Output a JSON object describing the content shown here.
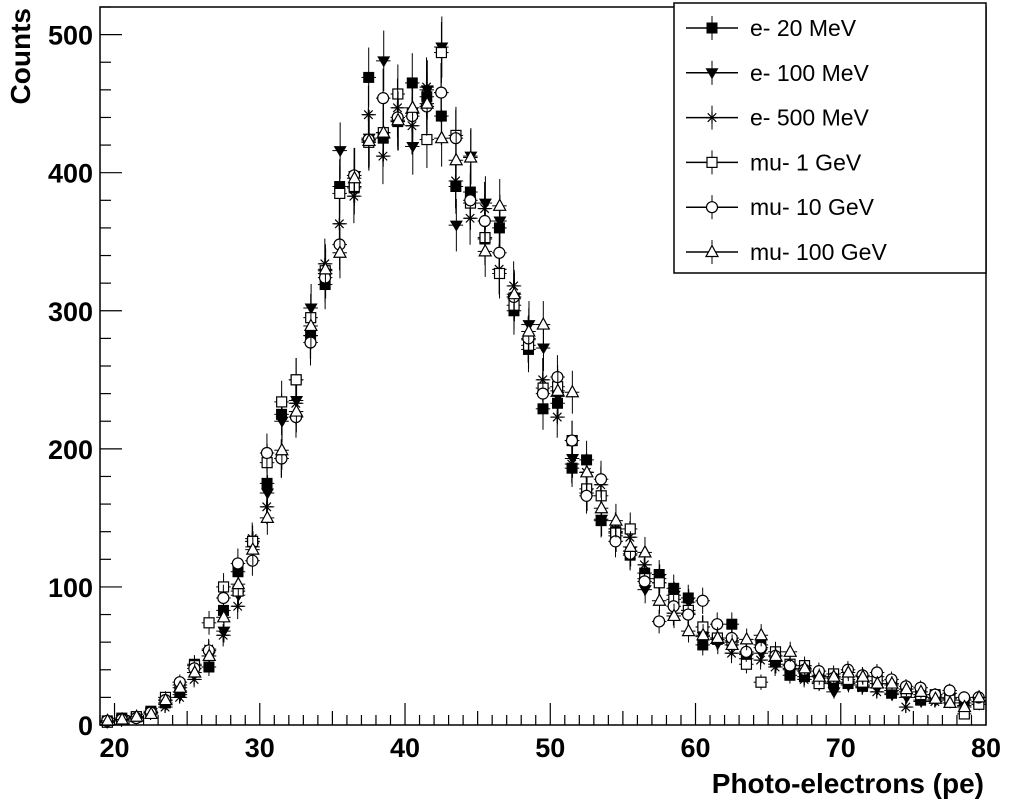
{
  "chart_data": {
    "type": "scatter",
    "title": "",
    "xlabel": "Photo-electrons (pe)",
    "ylabel": "Counts",
    "xlim": [
      19,
      80
    ],
    "ylim": [
      0,
      520
    ],
    "x_ticks": [
      20,
      30,
      40,
      50,
      60,
      70,
      80
    ],
    "x_tick_labels": [
      "20",
      "30",
      "40",
      "50",
      "60",
      "70",
      "80"
    ],
    "y_ticks": [
      0,
      100,
      200,
      300,
      400,
      500
    ],
    "y_tick_labels": [
      "0",
      "100",
      "200",
      "300",
      "400",
      "500"
    ],
    "legend_position": "top-right",
    "legend": [
      "e- 20 MeV",
      "e- 100 MeV",
      "e- 500 MeV",
      "mu- 1 GeV",
      "mu- 10 GeV",
      "mu- 100 GeV"
    ],
    "x": [
      19.5,
      20.5,
      21.5,
      22.5,
      23.5,
      24.5,
      25.5,
      26.5,
      27.5,
      28.5,
      29.5,
      30.5,
      31.5,
      32.5,
      33.5,
      34.5,
      35.5,
      36.5,
      37.5,
      38.5,
      39.5,
      40.5,
      41.5,
      42.5,
      43.5,
      44.5,
      45.5,
      46.5,
      47.5,
      48.5,
      49.5,
      50.5,
      51.5,
      52.5,
      53.5,
      54.5,
      55.5,
      56.5,
      57.5,
      58.5,
      59.5,
      60.5,
      61.5,
      62.5,
      63.5,
      64.5,
      65.5,
      66.5,
      67.5,
      68.5,
      69.5,
      70.5,
      71.5,
      72.5,
      73.5,
      74.5,
      75.5,
      76.5,
      77.5,
      78.5,
      79.5
    ],
    "series": [
      {
        "name": "e- 20 MeV",
        "marker": "filled-square",
        "values": [
          3,
          5,
          6,
          10,
          16,
          24,
          44,
          42,
          83,
          111,
          133,
          175,
          225,
          250,
          282,
          319,
          390,
          389,
          469,
          425,
          437,
          465,
          455,
          441,
          390,
          386,
          352,
          360,
          300,
          272,
          229,
          233,
          186,
          192,
          148,
          140,
          123,
          110,
          109,
          99,
          92,
          58,
          62,
          73,
          51,
          58,
          46,
          36,
          35,
          36,
          31,
          30,
          28,
          35,
          23,
          26,
          18,
          22,
          23,
          18,
          17
        ]
      },
      {
        "name": "e- 100 MeV",
        "marker": "filled-triangle-down",
        "values": [
          2,
          4,
          5,
          9,
          15,
          22,
          38,
          50,
          68,
          94,
          129,
          168,
          220,
          235,
          302,
          327,
          416,
          398,
          425,
          481,
          437,
          419,
          460,
          491,
          362,
          412,
          378,
          365,
          310,
          290,
          273,
          238,
          193,
          168,
          149,
          137,
          126,
          98,
          106,
          94,
          89,
          64,
          59,
          60,
          48,
          52,
          44,
          40,
          39,
          31,
          24,
          29,
          29,
          27,
          22,
          20,
          17,
          18,
          20,
          16,
          15
        ]
      },
      {
        "name": "e- 500 MeV",
        "marker": "star",
        "values": [
          2,
          3,
          5,
          8,
          13,
          20,
          33,
          55,
          65,
          86,
          135,
          158,
          193,
          233,
          282,
          334,
          363,
          383,
          442,
          412,
          447,
          434,
          462,
          458,
          394,
          367,
          374,
          330,
          318,
          279,
          250,
          223,
          189,
          183,
          174,
          142,
          136,
          116,
          103,
          81,
          81,
          71,
          63,
          52,
          52,
          47,
          42,
          41,
          33,
          35,
          30,
          31,
          27,
          24,
          25,
          13,
          20,
          17,
          19,
          14,
          17
        ]
      },
      {
        "name": "mu- 1 GeV",
        "marker": "open-square",
        "values": [
          2,
          4,
          6,
          9,
          20,
          29,
          43,
          74,
          100,
          97,
          133,
          190,
          234,
          250,
          295,
          329,
          385,
          390,
          422,
          429,
          457,
          443,
          424,
          487,
          427,
          378,
          353,
          327,
          304,
          275,
          244,
          245,
          206,
          171,
          166,
          139,
          142,
          106,
          103,
          91,
          83,
          71,
          63,
          61,
          44,
          31,
          53,
          44,
          43,
          30,
          37,
          33,
          31,
          32,
          29,
          24,
          22,
          20,
          18,
          8,
          15
        ]
      },
      {
        "name": "mu- 10 GeV",
        "marker": "open-circle",
        "values": [
          3,
          4,
          5,
          9,
          18,
          31,
          41,
          54,
          92,
          117,
          119,
          197,
          193,
          223,
          277,
          324,
          348,
          398,
          424,
          454,
          440,
          441,
          448,
          458,
          425,
          380,
          365,
          342,
          310,
          280,
          240,
          252,
          206,
          166,
          178,
          133,
          124,
          104,
          75,
          86,
          80,
          90,
          73,
          63,
          53,
          56,
          50,
          43,
          40,
          39,
          34,
          40,
          36,
          38,
          33,
          28,
          27,
          22,
          25,
          20,
          20
        ]
      },
      {
        "name": "mu- 100 GeV",
        "marker": "open-triangle-up",
        "values": [
          3,
          4,
          6,
          8,
          18,
          27,
          38,
          50,
          78,
          102,
          127,
          150,
          199,
          227,
          289,
          330,
          342,
          396,
          423,
          429,
          438,
          447,
          450,
          425,
          409,
          411,
          343,
          376,
          312,
          285,
          290,
          242,
          241,
          183,
          157,
          148,
          129,
          125,
          90,
          79,
          68,
          65,
          63,
          58,
          62,
          65,
          50,
          53,
          41,
          35,
          35,
          38,
          35,
          30,
          30,
          26,
          24,
          19,
          16,
          13,
          20
        ]
      }
    ]
  }
}
